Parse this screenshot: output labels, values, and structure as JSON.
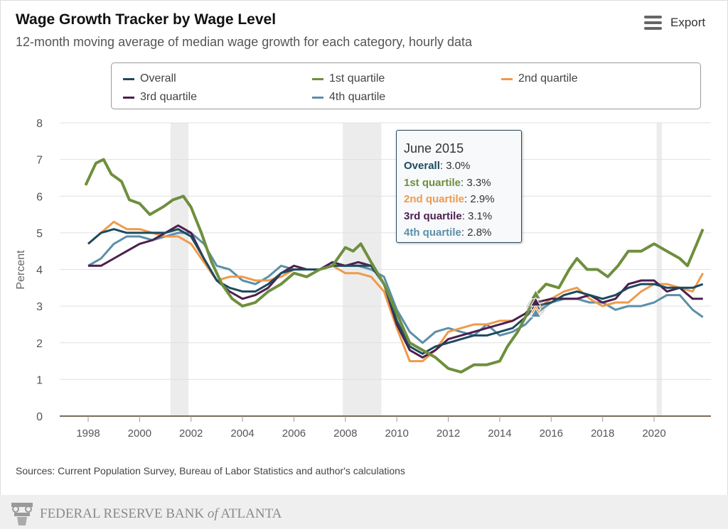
{
  "header": {
    "title": "Wage Growth Tracker by Wage Level",
    "subtitle": "12-month moving average of median wage growth for each category, hourly data",
    "export_label": "Export",
    "export_icon": "hamburger-menu-icon"
  },
  "tooltip": {
    "date": "June 2015",
    "rows": [
      {
        "label": "Overall",
        "value": ": 3.0%"
      },
      {
        "label": "1st quartile",
        "value": ": 3.3%"
      },
      {
        "label": "2nd quartile",
        "value": ": 2.9%"
      },
      {
        "label": "3rd quartile",
        "value": ": 3.1%"
      },
      {
        "label": "4th quartile",
        "value": ": 2.8%"
      }
    ]
  },
  "sources": "Sources: Current Population Survey, Bureau of Labor Statistics and author's calculations",
  "footer": {
    "logo_text": "FEDERAL RESERVE BANK of ATLANTA"
  },
  "chart_data": {
    "type": "line",
    "ylabel": "Percent",
    "xlabel": "",
    "ylim": [
      0,
      8
    ],
    "xlim": [
      1996.9,
      2022.2
    ],
    "yticks": [
      "0",
      "1",
      "2",
      "3",
      "4",
      "5",
      "6",
      "7",
      "8"
    ],
    "xticks": [
      "1998",
      "2000",
      "2002",
      "2004",
      "2006",
      "2008",
      "2010",
      "2012",
      "2014",
      "2016",
      "2018",
      "2020"
    ],
    "grid": true,
    "legend": "top",
    "recessions": [
      [
        2001.2,
        2001.9
      ],
      [
        2007.9,
        2009.4
      ],
      [
        2020.1,
        2020.3
      ]
    ],
    "highlight_x": 2015.4,
    "series": [
      {
        "name": "Overall",
        "color": "#1d4a5e",
        "points": [
          [
            1998,
            4.7
          ],
          [
            1998.5,
            5.0
          ],
          [
            1999,
            5.1
          ],
          [
            1999.5,
            5.0
          ],
          [
            2000,
            5.0
          ],
          [
            2000.5,
            5.0
          ],
          [
            2001,
            5.0
          ],
          [
            2001.5,
            5.1
          ],
          [
            2002,
            4.9
          ],
          [
            2002.5,
            4.3
          ],
          [
            2003,
            3.7
          ],
          [
            2003.5,
            3.5
          ],
          [
            2004,
            3.4
          ],
          [
            2004.5,
            3.4
          ],
          [
            2005,
            3.6
          ],
          [
            2005.5,
            3.9
          ],
          [
            2006,
            4.0
          ],
          [
            2006.5,
            4.0
          ],
          [
            2007,
            4.0
          ],
          [
            2007.5,
            4.1
          ],
          [
            2008,
            4.1
          ],
          [
            2008.5,
            4.1
          ],
          [
            2009,
            4.1
          ],
          [
            2009.5,
            3.6
          ],
          [
            2010,
            2.6
          ],
          [
            2010.5,
            1.9
          ],
          [
            2011,
            1.7
          ],
          [
            2011.5,
            1.9
          ],
          [
            2012,
            2.0
          ],
          [
            2012.5,
            2.1
          ],
          [
            2013,
            2.2
          ],
          [
            2013.5,
            2.2
          ],
          [
            2014,
            2.3
          ],
          [
            2014.5,
            2.4
          ],
          [
            2015,
            2.7
          ],
          [
            2015.4,
            3.0
          ],
          [
            2016,
            3.1
          ],
          [
            2016.5,
            3.3
          ],
          [
            2017,
            3.4
          ],
          [
            2017.5,
            3.3
          ],
          [
            2018,
            3.2
          ],
          [
            2018.5,
            3.3
          ],
          [
            2019,
            3.5
          ],
          [
            2019.5,
            3.6
          ],
          [
            2020,
            3.6
          ],
          [
            2020.5,
            3.5
          ],
          [
            2021,
            3.5
          ],
          [
            2021.5,
            3.5
          ],
          [
            2021.9,
            3.6
          ]
        ]
      },
      {
        "name": "1st quartile",
        "color": "#6e8f3e",
        "points": [
          [
            1997.9,
            6.3
          ],
          [
            1998.3,
            6.9
          ],
          [
            1998.6,
            7.0
          ],
          [
            1998.9,
            6.6
          ],
          [
            1999.3,
            6.4
          ],
          [
            1999.6,
            5.9
          ],
          [
            2000,
            5.8
          ],
          [
            2000.4,
            5.5
          ],
          [
            2000.9,
            5.7
          ],
          [
            2001.3,
            5.9
          ],
          [
            2001.7,
            6.0
          ],
          [
            2002,
            5.7
          ],
          [
            2002.4,
            5.0
          ],
          [
            2002.8,
            4.2
          ],
          [
            2003.2,
            3.6
          ],
          [
            2003.6,
            3.2
          ],
          [
            2004,
            3.0
          ],
          [
            2004.5,
            3.1
          ],
          [
            2005,
            3.4
          ],
          [
            2005.5,
            3.6
          ],
          [
            2006,
            3.9
          ],
          [
            2006.5,
            3.8
          ],
          [
            2007,
            4.0
          ],
          [
            2007.5,
            4.1
          ],
          [
            2008,
            4.6
          ],
          [
            2008.3,
            4.5
          ],
          [
            2008.6,
            4.7
          ],
          [
            2009,
            4.2
          ],
          [
            2009.5,
            3.6
          ],
          [
            2010,
            2.8
          ],
          [
            2010.5,
            2.0
          ],
          [
            2011,
            1.8
          ],
          [
            2011.5,
            1.6
          ],
          [
            2012,
            1.3
          ],
          [
            2012.5,
            1.2
          ],
          [
            2013,
            1.4
          ],
          [
            2013.5,
            1.4
          ],
          [
            2014,
            1.5
          ],
          [
            2014.3,
            1.9
          ],
          [
            2014.7,
            2.3
          ],
          [
            2015,
            2.7
          ],
          [
            2015.4,
            3.3
          ],
          [
            2015.8,
            3.6
          ],
          [
            2016.3,
            3.5
          ],
          [
            2016.7,
            4.0
          ],
          [
            2017,
            4.3
          ],
          [
            2017.4,
            4.0
          ],
          [
            2017.8,
            4.0
          ],
          [
            2018.2,
            3.8
          ],
          [
            2018.6,
            4.1
          ],
          [
            2019,
            4.5
          ],
          [
            2019.5,
            4.5
          ],
          [
            2020,
            4.7
          ],
          [
            2020.5,
            4.5
          ],
          [
            2021,
            4.3
          ],
          [
            2021.3,
            4.1
          ],
          [
            2021.6,
            4.6
          ],
          [
            2021.9,
            5.1
          ]
        ]
      },
      {
        "name": "2nd quartile",
        "color": "#ef9a4a",
        "points": [
          [
            1998,
            4.7
          ],
          [
            1998.5,
            5.0
          ],
          [
            1999,
            5.3
          ],
          [
            1999.5,
            5.1
          ],
          [
            2000,
            5.1
          ],
          [
            2000.5,
            5.0
          ],
          [
            2001,
            4.9
          ],
          [
            2001.5,
            4.9
          ],
          [
            2002,
            4.7
          ],
          [
            2002.5,
            4.2
          ],
          [
            2003,
            3.7
          ],
          [
            2003.5,
            3.8
          ],
          [
            2004,
            3.8
          ],
          [
            2004.5,
            3.7
          ],
          [
            2005,
            3.7
          ],
          [
            2005.5,
            3.8
          ],
          [
            2006,
            4.0
          ],
          [
            2006.5,
            4.0
          ],
          [
            2007,
            4.0
          ],
          [
            2007.5,
            4.1
          ],
          [
            2008,
            3.9
          ],
          [
            2008.5,
            3.9
          ],
          [
            2009,
            3.8
          ],
          [
            2009.5,
            3.4
          ],
          [
            2010,
            2.4
          ],
          [
            2010.5,
            1.5
          ],
          [
            2011,
            1.5
          ],
          [
            2011.5,
            1.8
          ],
          [
            2012,
            2.3
          ],
          [
            2012.5,
            2.4
          ],
          [
            2013,
            2.5
          ],
          [
            2013.5,
            2.5
          ],
          [
            2014,
            2.6
          ],
          [
            2014.5,
            2.6
          ],
          [
            2015,
            2.8
          ],
          [
            2015.4,
            2.9
          ],
          [
            2016,
            3.2
          ],
          [
            2016.5,
            3.4
          ],
          [
            2017,
            3.5
          ],
          [
            2017.5,
            3.2
          ],
          [
            2018,
            3.0
          ],
          [
            2018.5,
            3.1
          ],
          [
            2019,
            3.1
          ],
          [
            2019.5,
            3.4
          ],
          [
            2020,
            3.6
          ],
          [
            2020.5,
            3.6
          ],
          [
            2021,
            3.5
          ],
          [
            2021.5,
            3.4
          ],
          [
            2021.9,
            3.9
          ]
        ]
      },
      {
        "name": "3rd quartile",
        "color": "#4d1f4f",
        "points": [
          [
            1998,
            4.1
          ],
          [
            1998.5,
            4.1
          ],
          [
            1999,
            4.3
          ],
          [
            1999.5,
            4.5
          ],
          [
            2000,
            4.7
          ],
          [
            2000.5,
            4.8
          ],
          [
            2001,
            5.0
          ],
          [
            2001.5,
            5.2
          ],
          [
            2002,
            5.0
          ],
          [
            2002.5,
            4.3
          ],
          [
            2003,
            3.7
          ],
          [
            2003.5,
            3.4
          ],
          [
            2004,
            3.2
          ],
          [
            2004.5,
            3.3
          ],
          [
            2005,
            3.5
          ],
          [
            2005.5,
            3.9
          ],
          [
            2006,
            4.1
          ],
          [
            2006.5,
            4.0
          ],
          [
            2007,
            4.0
          ],
          [
            2007.5,
            4.2
          ],
          [
            2008,
            4.1
          ],
          [
            2008.5,
            4.2
          ],
          [
            2009,
            4.1
          ],
          [
            2009.5,
            3.6
          ],
          [
            2010,
            2.5
          ],
          [
            2010.5,
            1.8
          ],
          [
            2011,
            1.6
          ],
          [
            2011.5,
            1.8
          ],
          [
            2012,
            2.1
          ],
          [
            2012.5,
            2.2
          ],
          [
            2013,
            2.3
          ],
          [
            2013.5,
            2.4
          ],
          [
            2014,
            2.5
          ],
          [
            2014.5,
            2.6
          ],
          [
            2015,
            2.8
          ],
          [
            2015.4,
            3.1
          ],
          [
            2016,
            3.2
          ],
          [
            2016.5,
            3.2
          ],
          [
            2017,
            3.2
          ],
          [
            2017.5,
            3.3
          ],
          [
            2018,
            3.1
          ],
          [
            2018.5,
            3.2
          ],
          [
            2019,
            3.6
          ],
          [
            2019.5,
            3.7
          ],
          [
            2020,
            3.7
          ],
          [
            2020.5,
            3.4
          ],
          [
            2021,
            3.5
          ],
          [
            2021.5,
            3.2
          ],
          [
            2021.9,
            3.2
          ]
        ]
      },
      {
        "name": "4th quartile",
        "color": "#5b8fa8",
        "points": [
          [
            1998,
            4.1
          ],
          [
            1998.5,
            4.3
          ],
          [
            1999,
            4.7
          ],
          [
            1999.5,
            4.9
          ],
          [
            2000,
            4.9
          ],
          [
            2000.5,
            4.8
          ],
          [
            2001,
            4.9
          ],
          [
            2001.5,
            5.0
          ],
          [
            2002,
            5.0
          ],
          [
            2002.5,
            4.7
          ],
          [
            2003,
            4.1
          ],
          [
            2003.5,
            4.0
          ],
          [
            2004,
            3.7
          ],
          [
            2004.5,
            3.6
          ],
          [
            2005,
            3.8
          ],
          [
            2005.5,
            4.1
          ],
          [
            2006,
            4.0
          ],
          [
            2006.5,
            4.0
          ],
          [
            2007,
            4.0
          ],
          [
            2007.5,
            4.1
          ],
          [
            2008,
            4.1
          ],
          [
            2008.5,
            4.1
          ],
          [
            2009,
            4.0
          ],
          [
            2009.5,
            3.8
          ],
          [
            2010,
            2.9
          ],
          [
            2010.5,
            2.3
          ],
          [
            2011,
            2.0
          ],
          [
            2011.5,
            2.3
          ],
          [
            2012,
            2.4
          ],
          [
            2012.5,
            2.3
          ],
          [
            2013,
            2.2
          ],
          [
            2013.5,
            2.5
          ],
          [
            2014,
            2.2
          ],
          [
            2014.5,
            2.3
          ],
          [
            2015,
            2.5
          ],
          [
            2015.4,
            2.8
          ],
          [
            2016,
            3.1
          ],
          [
            2016.5,
            3.2
          ],
          [
            2017,
            3.2
          ],
          [
            2017.5,
            3.1
          ],
          [
            2018,
            3.1
          ],
          [
            2018.5,
            2.9
          ],
          [
            2019,
            3.0
          ],
          [
            2019.5,
            3.0
          ],
          [
            2020,
            3.1
          ],
          [
            2020.5,
            3.3
          ],
          [
            2021,
            3.3
          ],
          [
            2021.5,
            2.9
          ],
          [
            2021.9,
            2.7
          ]
        ]
      }
    ]
  }
}
